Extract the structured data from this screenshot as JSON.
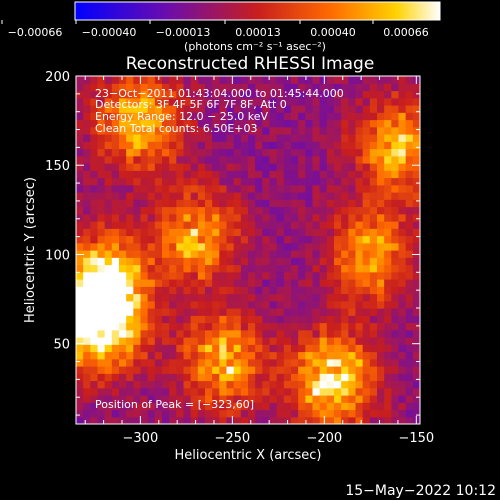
{
  "chart_data": {
    "type": "heatmap",
    "title": "Reconstructed RHESSI Image",
    "xlabel": "Heliocentric X (arcsec)",
    "ylabel": "Heliocentric Y (arcsec)",
    "xlim": [
      -335,
      -148
    ],
    "ylim": [
      5,
      200
    ],
    "x_ticks": [
      -300,
      -250,
      -200,
      -150
    ],
    "x_tick_labels": [
      "−300",
      "−250",
      "−200",
      "−150"
    ],
    "y_ticks": [
      50,
      100,
      150,
      200
    ],
    "y_tick_labels": [
      "50",
      "100",
      "150",
      "200"
    ],
    "colorbar": {
      "range": [
        -0.00066,
        0.00066
      ],
      "tick_labels": [
        "−0.00066",
        "−0.00040",
        "−0.00013",
        "0.00013",
        "0.00040",
        "0.00066"
      ],
      "unit_label": "(photons cm⁻² s⁻¹ asec⁻²)",
      "colors": [
        "#0000ff",
        "#6a0dad",
        "#c81e1e",
        "#ff6a00",
        "#ffd200",
        "#ffffff"
      ]
    },
    "annotations": {
      "time_range": "23−Oct−2011 01:43:04.000 to 01:45:44.000",
      "detectors": "Detectors: 3F 4F 5F 6F 7F 8F, Att 0",
      "energy": "Energy Range: 12.0 − 25.0 keV",
      "clean": "Clean    Total counts: 6.50E+03",
      "peak": "Position of Peak = [−323,60]"
    },
    "peak_position": [
      -323,
      60
    ],
    "bright_regions": [
      {
        "x": -320,
        "y": 85,
        "strength": 0.0006
      },
      {
        "x": -322,
        "y": 60,
        "strength": 0.00066
      },
      {
        "x": -300,
        "y": 175,
        "strength": 0.0005
      },
      {
        "x": -270,
        "y": 110,
        "strength": 0.0004
      },
      {
        "x": -255,
        "y": 40,
        "strength": 0.00045
      },
      {
        "x": -195,
        "y": 30,
        "strength": 0.0006
      },
      {
        "x": -175,
        "y": 100,
        "strength": 0.0004
      },
      {
        "x": -160,
        "y": 160,
        "strength": 0.00045
      }
    ],
    "background_level": -0.0002
  },
  "footer": {
    "date": "15−May−2022 10:12"
  }
}
